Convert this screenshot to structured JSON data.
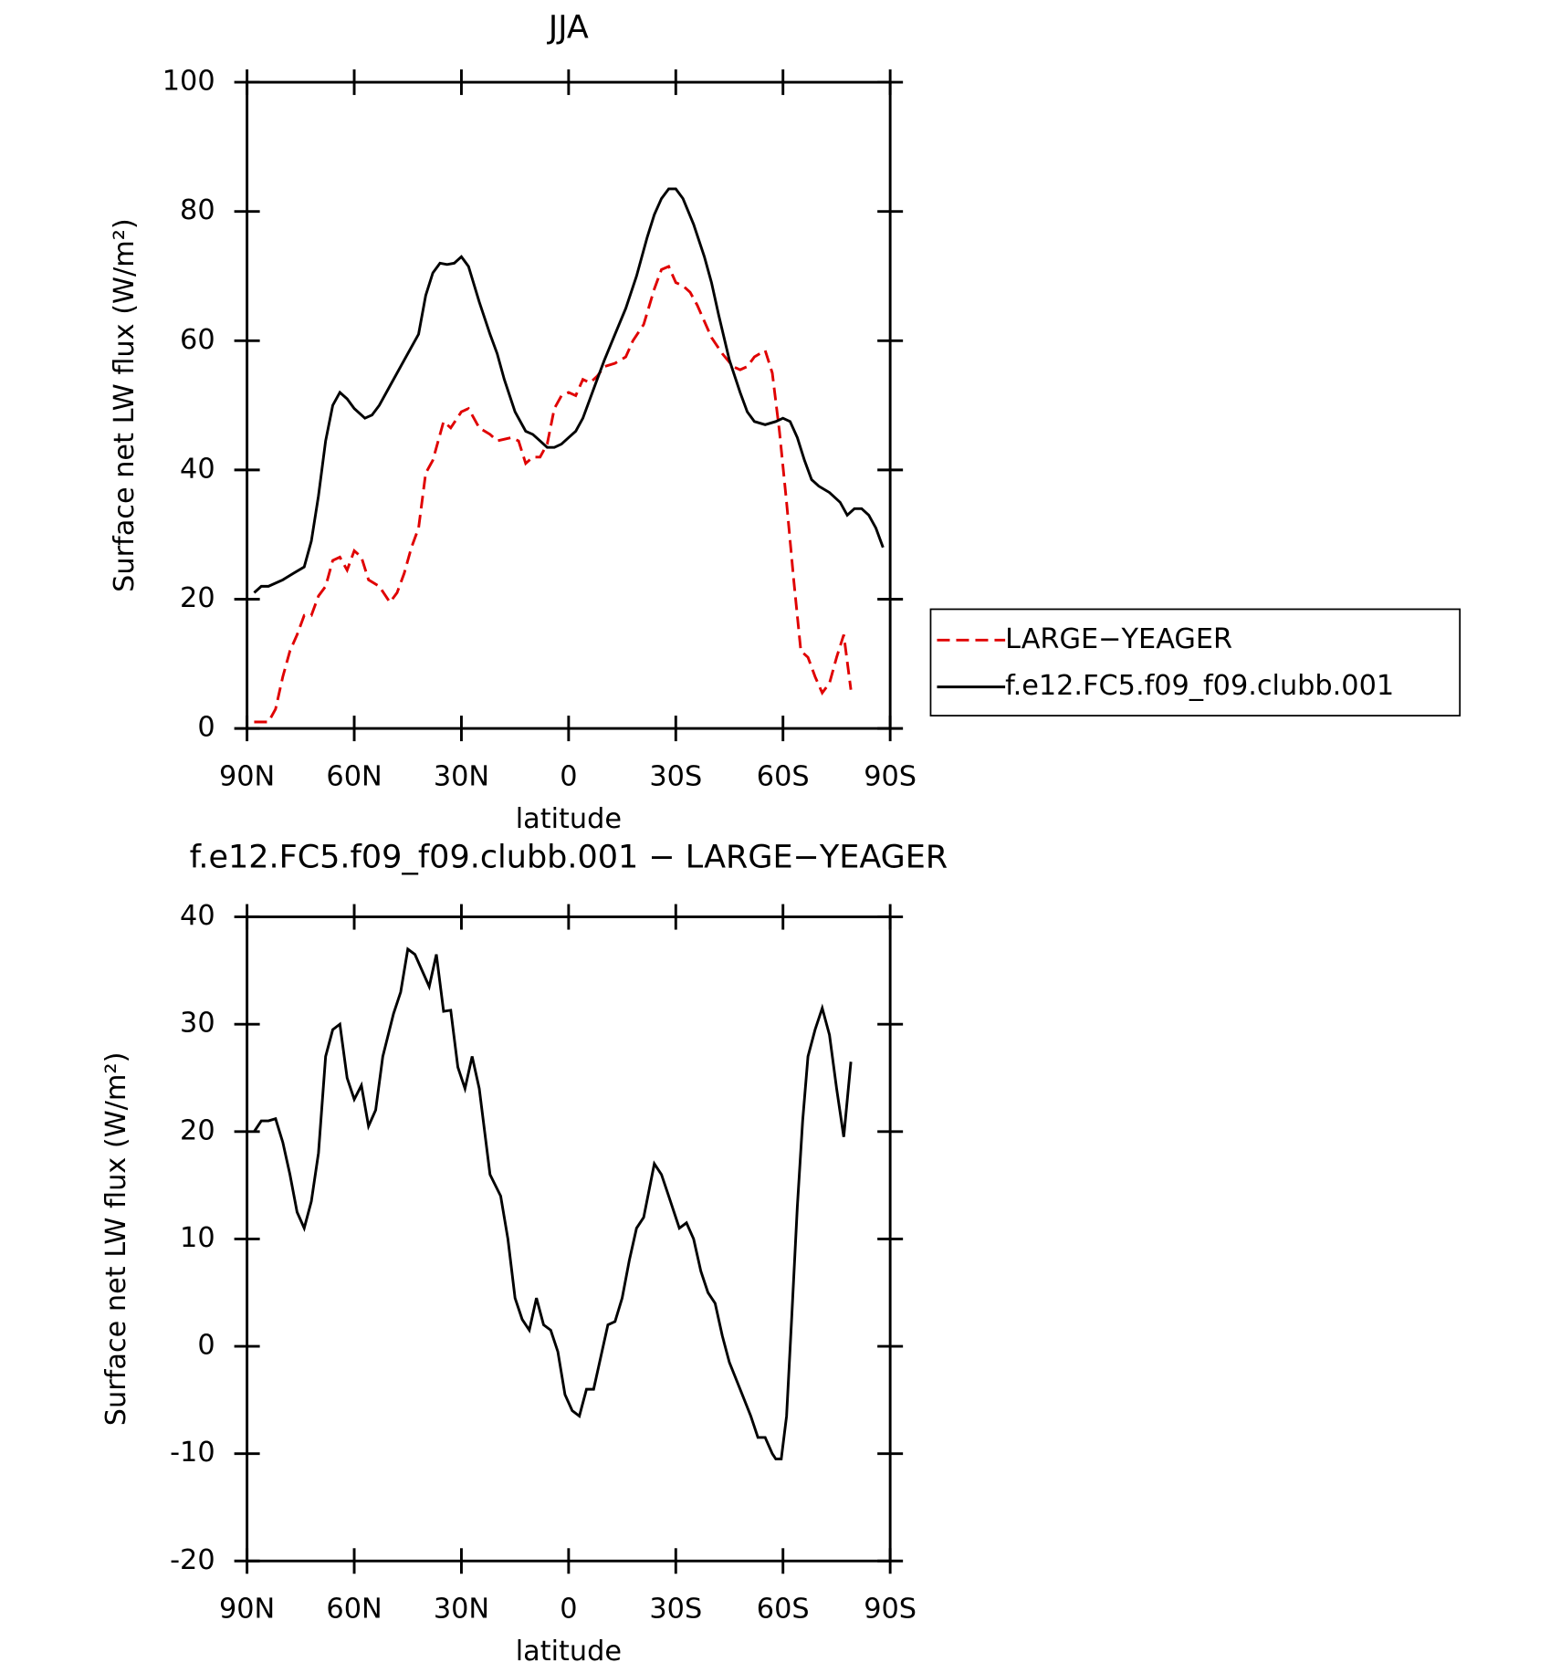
{
  "chart_data": [
    {
      "type": "line",
      "title": "JJA",
      "xlabel": "latitude",
      "ylabel": "Surface net LW flux (W/m²)",
      "xlim": [
        90,
        -90
      ],
      "xticks": [
        {
          "value": 90,
          "label": "90N"
        },
        {
          "value": 60,
          "label": "60N"
        },
        {
          "value": 30,
          "label": "30N"
        },
        0,
        {
          "value": -30,
          "label": "30S"
        },
        {
          "value": -60,
          "label": "60S"
        },
        {
          "value": -90,
          "label": "90S"
        }
      ],
      "ylim": [
        0,
        100
      ],
      "yticks": [
        0,
        20,
        40,
        60,
        80,
        100
      ],
      "legend": "right",
      "series": [
        {
          "name": "LARGE−YEAGER",
          "color": "#e00000",
          "dash": true,
          "x": [
            88,
            84,
            82,
            80,
            78,
            76,
            74,
            72,
            70,
            68,
            66,
            64,
            62,
            60,
            58,
            56,
            53,
            50,
            48,
            46,
            44,
            42,
            40,
            38,
            35,
            33,
            30,
            28,
            25,
            22,
            20,
            16,
            14,
            12,
            10,
            8,
            6,
            4,
            2,
            0,
            -2,
            -4,
            -6,
            -8,
            -10,
            -13,
            -16,
            -18,
            -21,
            -24,
            -26,
            -28,
            -30,
            -32,
            -34,
            -36,
            -40,
            -43,
            -46,
            -48,
            -50,
            -52,
            -55,
            -57,
            -59,
            -61,
            -63,
            -65,
            -67,
            -69,
            -71,
            -73,
            -75,
            -77,
            -79
          ],
          "values": [
            1,
            1,
            3,
            8,
            12,
            14.5,
            17.5,
            17.5,
            20.5,
            22,
            26,
            26.5,
            24.5,
            27.5,
            26.5,
            23,
            22,
            19.5,
            21,
            24,
            28,
            31,
            39.5,
            41.5,
            47.5,
            46.5,
            49,
            49.5,
            46.5,
            45.5,
            44.5,
            45,
            44.5,
            41,
            42,
            42,
            44,
            49.5,
            51.5,
            52,
            51.5,
            54,
            53.5,
            54.5,
            56,
            56.5,
            57.5,
            60,
            62.5,
            68,
            71,
            71.5,
            69,
            68.5,
            67.5,
            65.5,
            60.5,
            58,
            56,
            55.5,
            56,
            57.5,
            58.5,
            55,
            46,
            35,
            23,
            12,
            11,
            8,
            5.5,
            7,
            11,
            14.5,
            6
          ]
        },
        {
          "name": "f.e12.FC5.f09_f09.clubb.001",
          "color": "#000000",
          "dash": false,
          "x": [
            88,
            86,
            84,
            80,
            77,
            74,
            72,
            70,
            68,
            66,
            64,
            62,
            60,
            57,
            55,
            53,
            50,
            46,
            42,
            40,
            38,
            36,
            34,
            32,
            30,
            28,
            25,
            22,
            20,
            18,
            15,
            12,
            10,
            8,
            6,
            4,
            2,
            0,
            -2,
            -4,
            -6,
            -8,
            -10,
            -13,
            -16,
            -19,
            -22,
            -24,
            -26,
            -28,
            -30,
            -32,
            -35,
            -38,
            -40,
            -42,
            -45,
            -48,
            -50,
            -52,
            -55,
            -58,
            -60,
            -62,
            -64,
            -66,
            -68,
            -70,
            -73,
            -76,
            -78,
            -80,
            -82,
            -84,
            -86,
            -88
          ],
          "values": [
            21,
            22,
            22,
            23,
            24,
            25,
            29,
            36,
            44.5,
            50,
            52,
            51,
            49.5,
            48,
            48.5,
            50,
            53,
            57,
            61,
            67,
            70.5,
            72,
            71.8,
            72,
            73,
            71.5,
            66,
            61,
            58,
            54,
            49,
            46,
            45.5,
            44.5,
            43.5,
            43.5,
            44,
            45,
            46,
            48,
            51,
            54,
            57,
            61,
            65,
            70,
            76,
            79.5,
            82,
            83.5,
            83.5,
            82,
            78,
            73,
            69,
            64,
            57,
            52,
            49,
            47.5,
            47,
            47.5,
            48,
            47.5,
            45,
            41.5,
            38.5,
            37.5,
            36.5,
            35,
            33,
            34,
            34,
            33,
            31,
            28
          ]
        }
      ]
    },
    {
      "type": "line",
      "title": "f.e12.FC5.f09_f09.clubb.001 − LARGE−YEAGER",
      "xlabel": "latitude",
      "ylabel": "Surface net LW flux (W/m²)",
      "xlim": [
        90,
        -90
      ],
      "xticks": [
        {
          "value": 90,
          "label": "90N"
        },
        {
          "value": 60,
          "label": "60N"
        },
        {
          "value": 30,
          "label": "30N"
        },
        0,
        {
          "value": -30,
          "label": "30S"
        },
        {
          "value": -60,
          "label": "60S"
        },
        {
          "value": -90,
          "label": "90S"
        }
      ],
      "ylim": [
        -20,
        40
      ],
      "yticks": [
        -20,
        -10,
        0,
        10,
        20,
        30,
        40
      ],
      "series": [
        {
          "color": "#000000",
          "dash": false,
          "x": [
            88,
            86,
            84,
            82,
            80,
            78,
            76,
            74,
            72,
            70,
            68,
            66,
            64,
            62,
            60,
            58,
            56,
            54,
            52,
            49,
            47,
            45,
            43,
            41,
            39,
            37,
            35,
            33,
            31,
            29,
            27,
            25,
            22,
            19,
            17,
            15,
            13,
            11,
            9,
            7,
            5,
            3,
            1,
            -1,
            -3,
            -5,
            -7,
            -9,
            -11,
            -13,
            -15,
            -17,
            -19,
            -21,
            -24,
            -26,
            -28,
            -31,
            -33,
            -35,
            -37,
            -39,
            -41,
            -43,
            -45,
            -48,
            -51,
            -53,
            -55,
            -57,
            -58,
            -59.5,
            -61,
            -62.5,
            -64,
            -65.5,
            -67,
            -69,
            -71,
            -73,
            -75,
            -77,
            -79
          ],
          "values": [
            20,
            21,
            21,
            21.2,
            19,
            16,
            12.5,
            11,
            13.5,
            18,
            27,
            29.5,
            30,
            25,
            23,
            24.3,
            20.5,
            22,
            27,
            31,
            33,
            37,
            36.5,
            35,
            33.5,
            36.5,
            31.2,
            31.3,
            26,
            24,
            27,
            24,
            16,
            14,
            10,
            4.5,
            2.5,
            1.5,
            4.5,
            2,
            1.5,
            -0.5,
            -4.5,
            -6,
            -6.5,
            -4,
            -4,
            -1,
            2,
            2.3,
            4.5,
            8,
            11,
            12,
            17,
            16,
            14,
            11,
            11.5,
            10,
            7,
            5,
            4,
            1,
            -1.5,
            -4,
            -6.5,
            -8.5,
            -8.5,
            -10,
            -10.5,
            -10.5,
            -6.5,
            3,
            13,
            21,
            27,
            29.5,
            31.5,
            29,
            24,
            19.5,
            26.5
          ]
        }
      ]
    }
  ]
}
